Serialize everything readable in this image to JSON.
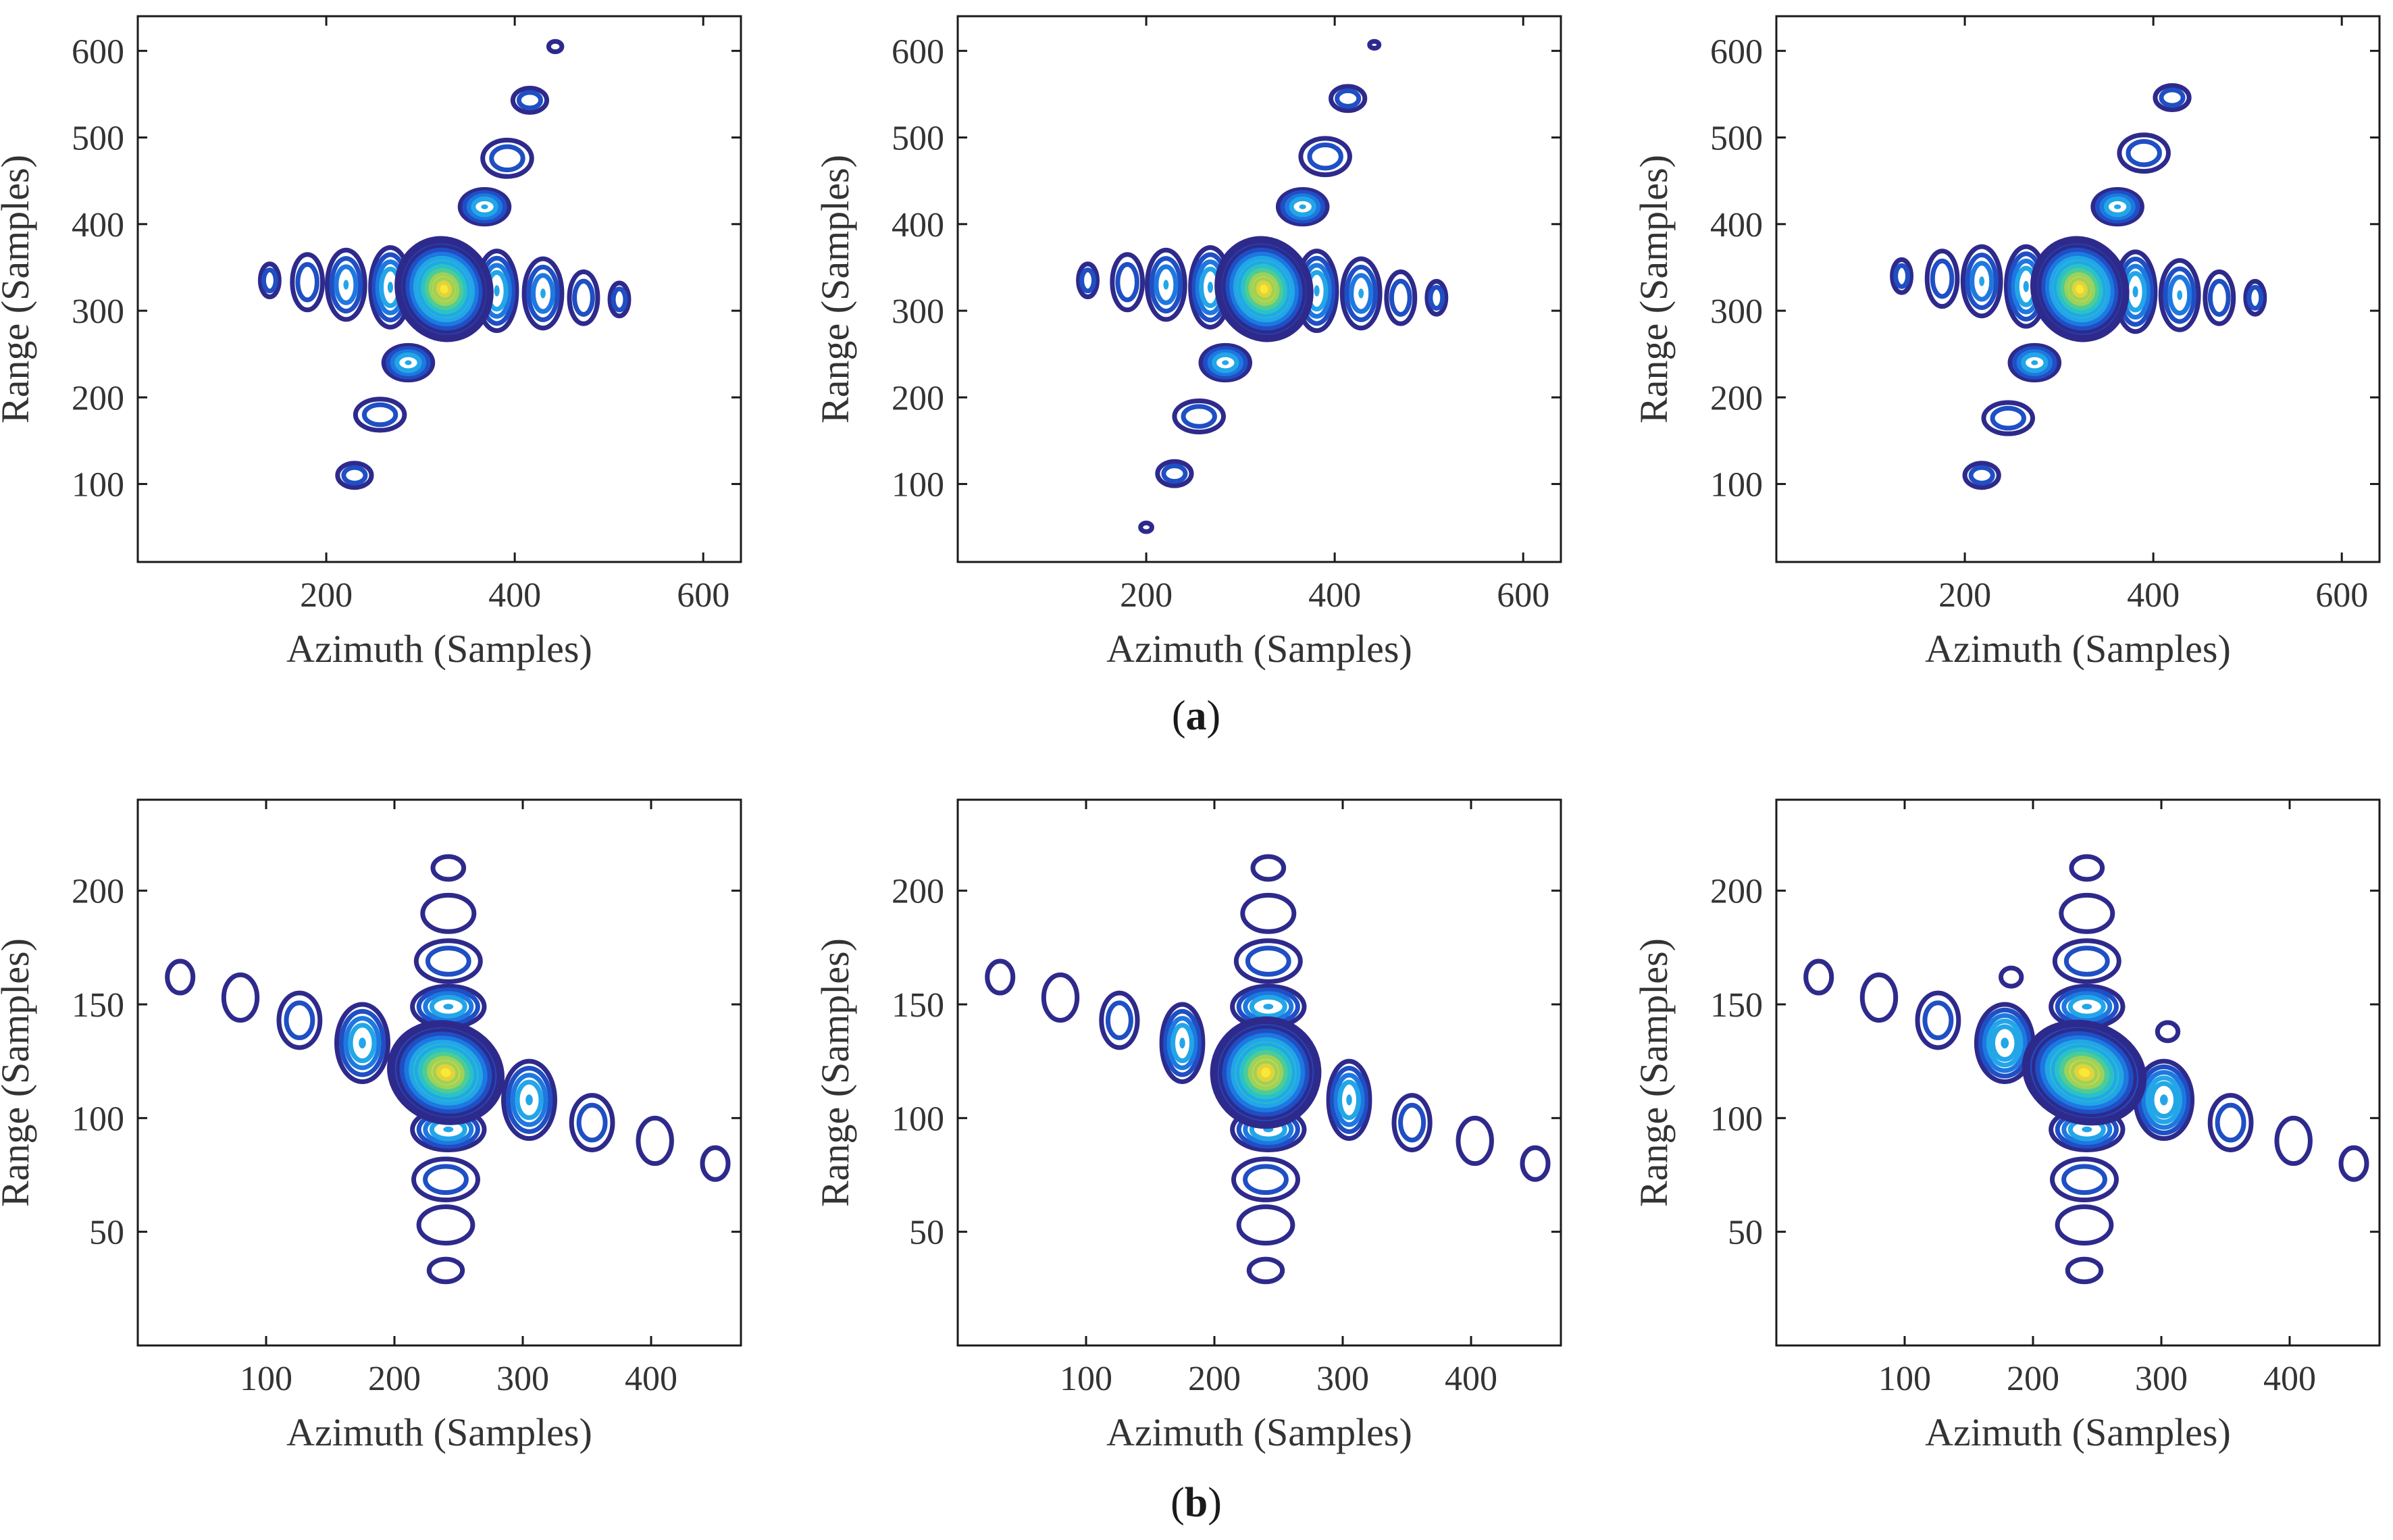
{
  "figure": {
    "captions": [
      {
        "open": "(",
        "letter": "a",
        "close": ")"
      },
      {
        "open": "(",
        "letter": "b",
        "close": ")"
      }
    ]
  },
  "colors": {
    "outer": "#2e2a8c",
    "ramp": [
      "#2e2a8c",
      "#1f4fc4",
      "#1e78e0",
      "#22a6e8",
      "#2ac3c4",
      "#4fcb98",
      "#9bd35a",
      "#e3d23a",
      "#f7e936"
    ]
  },
  "chart_data": [
    {
      "type": "contour",
      "row": "a",
      "panel": 1,
      "xlabel": "Azimuth (Samples)",
      "ylabel": "Range (Samples)",
      "xlim": [
        0,
        640
      ],
      "ylim": [
        10,
        640
      ],
      "xticks": [
        200,
        400,
        600
      ],
      "yticks": [
        100,
        200,
        300,
        400,
        500,
        600
      ],
      "center": [
        325,
        325
      ],
      "center_lobe_rx": 50,
      "center_lobe_ry": 60,
      "lobes": [
        {
          "x": 230,
          "y": 110,
          "rx": 18,
          "ry": 14,
          "levels": 2
        },
        {
          "x": 257,
          "y": 180,
          "rx": 26,
          "ry": 18,
          "levels": 2
        },
        {
          "x": 287,
          "y": 240,
          "rx": 26,
          "ry": 20,
          "levels": 4
        },
        {
          "x": 368,
          "y": 420,
          "rx": 26,
          "ry": 20,
          "levels": 4
        },
        {
          "x": 392,
          "y": 476,
          "rx": 26,
          "ry": 21,
          "levels": 2
        },
        {
          "x": 416,
          "y": 543,
          "rx": 18,
          "ry": 14,
          "levels": 2
        },
        {
          "x": 443,
          "y": 605,
          "rx": 7,
          "ry": 6,
          "levels": 1
        },
        {
          "x": 140,
          "y": 335,
          "rx": 10,
          "ry": 19,
          "levels": 2
        },
        {
          "x": 180,
          "y": 333,
          "rx": 16,
          "ry": 32,
          "levels": 2
        },
        {
          "x": 221,
          "y": 330,
          "rx": 20,
          "ry": 40,
          "levels": 3
        },
        {
          "x": 268,
          "y": 327,
          "rx": 21,
          "ry": 46,
          "levels": 4
        },
        {
          "x": 381,
          "y": 323,
          "rx": 21,
          "ry": 46,
          "levels": 4
        },
        {
          "x": 430,
          "y": 320,
          "rx": 20,
          "ry": 40,
          "levels": 3
        },
        {
          "x": 473,
          "y": 315,
          "rx": 15,
          "ry": 30,
          "levels": 2
        },
        {
          "x": 511,
          "y": 313,
          "rx": 10,
          "ry": 19,
          "levels": 2
        }
      ]
    },
    {
      "type": "contour",
      "row": "a",
      "panel": 2,
      "xlabel": "Azimuth (Samples)",
      "ylabel": "Range (Samples)",
      "xlim": [
        0,
        640
      ],
      "ylim": [
        10,
        640
      ],
      "xticks": [
        200,
        400,
        600
      ],
      "yticks": [
        100,
        200,
        300,
        400,
        500,
        600
      ],
      "center": [
        325,
        325
      ],
      "center_lobe_rx": 50,
      "center_lobe_ry": 60,
      "lobes": [
        {
          "x": 200,
          "y": 50,
          "rx": 6,
          "ry": 5,
          "levels": 1
        },
        {
          "x": 230,
          "y": 112,
          "rx": 18,
          "ry": 14,
          "levels": 2
        },
        {
          "x": 256,
          "y": 178,
          "rx": 26,
          "ry": 18,
          "levels": 2
        },
        {
          "x": 284,
          "y": 240,
          "rx": 26,
          "ry": 20,
          "levels": 4
        },
        {
          "x": 366,
          "y": 420,
          "rx": 26,
          "ry": 20,
          "levels": 4
        },
        {
          "x": 390,
          "y": 478,
          "rx": 26,
          "ry": 21,
          "levels": 2
        },
        {
          "x": 414,
          "y": 545,
          "rx": 18,
          "ry": 14,
          "levels": 2
        },
        {
          "x": 442,
          "y": 607,
          "rx": 5,
          "ry": 4,
          "levels": 1
        },
        {
          "x": 138,
          "y": 335,
          "rx": 10,
          "ry": 19,
          "levels": 2
        },
        {
          "x": 180,
          "y": 333,
          "rx": 16,
          "ry": 32,
          "levels": 2
        },
        {
          "x": 221,
          "y": 330,
          "rx": 20,
          "ry": 40,
          "levels": 3
        },
        {
          "x": 268,
          "y": 327,
          "rx": 21,
          "ry": 46,
          "levels": 4
        },
        {
          "x": 381,
          "y": 323,
          "rx": 21,
          "ry": 46,
          "levels": 4
        },
        {
          "x": 428,
          "y": 320,
          "rx": 20,
          "ry": 40,
          "levels": 3
        },
        {
          "x": 470,
          "y": 315,
          "rx": 15,
          "ry": 30,
          "levels": 2
        },
        {
          "x": 508,
          "y": 315,
          "rx": 10,
          "ry": 19,
          "levels": 2
        }
      ]
    },
    {
      "type": "contour",
      "row": "a",
      "panel": 3,
      "xlabel": "Azimuth (Samples)",
      "ylabel": "Range (Samples)",
      "xlim": [
        0,
        640
      ],
      "ylim": [
        10,
        640
      ],
      "xticks": [
        200,
        400,
        600
      ],
      "yticks": [
        100,
        200,
        300,
        400,
        500,
        600
      ],
      "center": [
        322,
        325
      ],
      "center_lobe_rx": 50,
      "center_lobe_ry": 60,
      "lobes": [
        {
          "x": 218,
          "y": 110,
          "rx": 18,
          "ry": 14,
          "levels": 2
        },
        {
          "x": 246,
          "y": 176,
          "rx": 26,
          "ry": 18,
          "levels": 2
        },
        {
          "x": 274,
          "y": 240,
          "rx": 26,
          "ry": 20,
          "levels": 4
        },
        {
          "x": 362,
          "y": 420,
          "rx": 26,
          "ry": 20,
          "levels": 4
        },
        {
          "x": 390,
          "y": 482,
          "rx": 26,
          "ry": 21,
          "levels": 2
        },
        {
          "x": 420,
          "y": 546,
          "rx": 18,
          "ry": 14,
          "levels": 2
        },
        {
          "x": 133,
          "y": 340,
          "rx": 10,
          "ry": 19,
          "levels": 2
        },
        {
          "x": 176,
          "y": 337,
          "rx": 16,
          "ry": 32,
          "levels": 2
        },
        {
          "x": 218,
          "y": 334,
          "rx": 20,
          "ry": 40,
          "levels": 3
        },
        {
          "x": 265,
          "y": 328,
          "rx": 21,
          "ry": 46,
          "levels": 4
        },
        {
          "x": 381,
          "y": 322,
          "rx": 21,
          "ry": 46,
          "levels": 4
        },
        {
          "x": 428,
          "y": 318,
          "rx": 20,
          "ry": 40,
          "levels": 3
        },
        {
          "x": 470,
          "y": 315,
          "rx": 15,
          "ry": 30,
          "levels": 2
        },
        {
          "x": 508,
          "y": 315,
          "rx": 10,
          "ry": 19,
          "levels": 2
        }
      ]
    },
    {
      "type": "contour",
      "row": "b",
      "panel": 1,
      "xlabel": "Azimuth (Samples)",
      "ylabel": "Range (Samples)",
      "xlim": [
        0,
        470
      ],
      "ylim": [
        0,
        240
      ],
      "xticks": [
        100,
        200,
        300,
        400
      ],
      "yticks": [
        50,
        100,
        150,
        200
      ],
      "center": [
        240,
        120
      ],
      "center_lobe_rx": 45,
      "center_lobe_ry": 22,
      "lobes": [
        {
          "x": 240,
          "y": 33,
          "rx": 13,
          "ry": 5,
          "levels": 1
        },
        {
          "x": 240,
          "y": 53,
          "rx": 21,
          "ry": 8,
          "levels": 1
        },
        {
          "x": 240,
          "y": 73,
          "rx": 25,
          "ry": 9,
          "levels": 2
        },
        {
          "x": 242,
          "y": 95,
          "rx": 28,
          "ry": 9,
          "levels": 4
        },
        {
          "x": 242,
          "y": 149,
          "rx": 28,
          "ry": 9,
          "levels": 4
        },
        {
          "x": 242,
          "y": 169,
          "rx": 25,
          "ry": 9,
          "levels": 2
        },
        {
          "x": 242,
          "y": 190,
          "rx": 20,
          "ry": 8,
          "levels": 1
        },
        {
          "x": 242,
          "y": 210,
          "rx": 12,
          "ry": 5,
          "levels": 1
        },
        {
          "x": 33,
          "y": 162,
          "rx": 10,
          "ry": 7,
          "levels": 1
        },
        {
          "x": 80,
          "y": 153,
          "rx": 13,
          "ry": 10,
          "levels": 1
        },
        {
          "x": 126,
          "y": 143,
          "rx": 16,
          "ry": 12,
          "levels": 2
        },
        {
          "x": 175,
          "y": 133,
          "rx": 20,
          "ry": 17,
          "levels": 4
        },
        {
          "x": 305,
          "y": 108,
          "rx": 20,
          "ry": 17,
          "levels": 4
        },
        {
          "x": 354,
          "y": 98,
          "rx": 16,
          "ry": 12,
          "levels": 2
        },
        {
          "x": 403,
          "y": 90,
          "rx": 13,
          "ry": 10,
          "levels": 1
        },
        {
          "x": 450,
          "y": 80,
          "rx": 10,
          "ry": 7,
          "levels": 1
        }
      ]
    },
    {
      "type": "contour",
      "row": "b",
      "panel": 2,
      "xlabel": "Azimuth (Samples)",
      "ylabel": "Range (Samples)",
      "xlim": [
        0,
        470
      ],
      "ylim": [
        0,
        240
      ],
      "xticks": [
        100,
        200,
        300,
        400
      ],
      "yticks": [
        50,
        100,
        150,
        200
      ],
      "center": [
        240,
        120
      ],
      "center_lobe_rx": 42,
      "center_lobe_ry": 24,
      "lobes": [
        {
          "x": 240,
          "y": 33,
          "rx": 13,
          "ry": 5,
          "levels": 1
        },
        {
          "x": 240,
          "y": 53,
          "rx": 21,
          "ry": 8,
          "levels": 1
        },
        {
          "x": 240,
          "y": 73,
          "rx": 25,
          "ry": 9,
          "levels": 2
        },
        {
          "x": 242,
          "y": 95,
          "rx": 28,
          "ry": 9,
          "levels": 4
        },
        {
          "x": 242,
          "y": 149,
          "rx": 28,
          "ry": 9,
          "levels": 4
        },
        {
          "x": 242,
          "y": 169,
          "rx": 25,
          "ry": 9,
          "levels": 2
        },
        {
          "x": 242,
          "y": 190,
          "rx": 20,
          "ry": 8,
          "levels": 1
        },
        {
          "x": 242,
          "y": 210,
          "rx": 12,
          "ry": 5,
          "levels": 1
        },
        {
          "x": 33,
          "y": 162,
          "rx": 10,
          "ry": 7,
          "levels": 1
        },
        {
          "x": 80,
          "y": 153,
          "rx": 13,
          "ry": 10,
          "levels": 1
        },
        {
          "x": 126,
          "y": 143,
          "rx": 14,
          "ry": 12,
          "levels": 2
        },
        {
          "x": 175,
          "y": 133,
          "rx": 16,
          "ry": 17,
          "levels": 4
        },
        {
          "x": 305,
          "y": 108,
          "rx": 16,
          "ry": 17,
          "levels": 4
        },
        {
          "x": 354,
          "y": 98,
          "rx": 14,
          "ry": 12,
          "levels": 2
        },
        {
          "x": 403,
          "y": 90,
          "rx": 13,
          "ry": 10,
          "levels": 1
        },
        {
          "x": 450,
          "y": 80,
          "rx": 10,
          "ry": 7,
          "levels": 1
        }
      ]
    },
    {
      "type": "contour",
      "row": "b",
      "panel": 3,
      "xlabel": "Azimuth (Samples)",
      "ylabel": "Range (Samples)",
      "xlim": [
        0,
        470
      ],
      "ylim": [
        0,
        240
      ],
      "xticks": [
        100,
        200,
        300,
        400
      ],
      "yticks": [
        50,
        100,
        150,
        200
      ],
      "center": [
        240,
        120
      ],
      "center_lobe_rx": 48,
      "center_lobe_ry": 22,
      "lobes": [
        {
          "x": 240,
          "y": 33,
          "rx": 13,
          "ry": 5,
          "levels": 1
        },
        {
          "x": 240,
          "y": 53,
          "rx": 21,
          "ry": 8,
          "levels": 1
        },
        {
          "x": 240,
          "y": 73,
          "rx": 25,
          "ry": 9,
          "levels": 2
        },
        {
          "x": 242,
          "y": 95,
          "rx": 28,
          "ry": 9,
          "levels": 4
        },
        {
          "x": 242,
          "y": 149,
          "rx": 28,
          "ry": 9,
          "levels": 4
        },
        {
          "x": 242,
          "y": 169,
          "rx": 25,
          "ry": 9,
          "levels": 2
        },
        {
          "x": 242,
          "y": 190,
          "rx": 20,
          "ry": 8,
          "levels": 1
        },
        {
          "x": 242,
          "y": 210,
          "rx": 12,
          "ry": 5,
          "levels": 1
        },
        {
          "x": 183,
          "y": 162,
          "rx": 8,
          "ry": 4,
          "levels": 1
        },
        {
          "x": 305,
          "y": 138,
          "rx": 8,
          "ry": 4,
          "levels": 1
        },
        {
          "x": 33,
          "y": 162,
          "rx": 10,
          "ry": 7,
          "levels": 1
        },
        {
          "x": 80,
          "y": 153,
          "rx": 13,
          "ry": 10,
          "levels": 1
        },
        {
          "x": 126,
          "y": 143,
          "rx": 16,
          "ry": 12,
          "levels": 2
        },
        {
          "x": 178,
          "y": 133,
          "rx": 22,
          "ry": 17,
          "levels": 5
        },
        {
          "x": 302,
          "y": 108,
          "rx": 22,
          "ry": 17,
          "levels": 5
        },
        {
          "x": 354,
          "y": 98,
          "rx": 16,
          "ry": 12,
          "levels": 2
        },
        {
          "x": 403,
          "y": 90,
          "rx": 13,
          "ry": 10,
          "levels": 1
        },
        {
          "x": 450,
          "y": 80,
          "rx": 10,
          "ry": 7,
          "levels": 1
        }
      ]
    }
  ]
}
